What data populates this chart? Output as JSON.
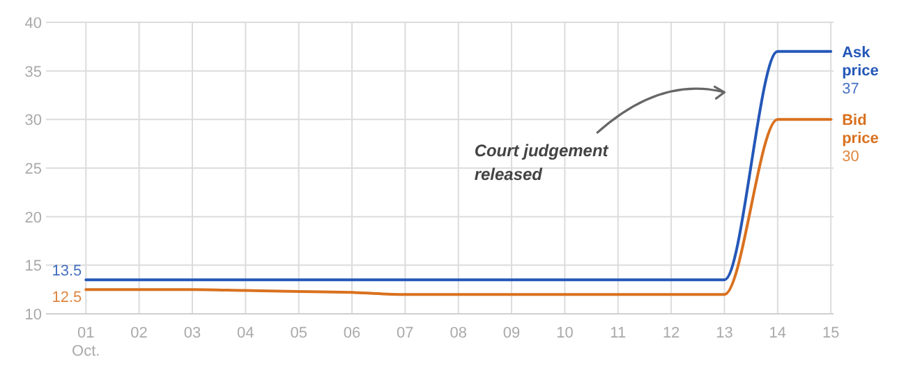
{
  "chart_data": {
    "type": "line",
    "annotations": [
      "Court judgement\nreleased"
    ],
    "x": [
      1,
      2,
      3,
      4,
      5,
      6,
      7,
      8,
      9,
      10,
      11,
      12,
      13,
      14,
      15
    ],
    "series": [
      {
        "name": "Ask\nprice",
        "color": "#2457b8",
        "values": [
          13.5,
          13.5,
          13.5,
          13.5,
          13.5,
          13.5,
          13.5,
          13.5,
          13.5,
          13.5,
          13.5,
          13.5,
          13.5,
          37,
          37
        ],
        "value_labels": [
          "13.5",
          null,
          null,
          null,
          null,
          null,
          null,
          null,
          null,
          null,
          null,
          null,
          null,
          null,
          "37"
        ]
      },
      {
        "name": "Bid\nprice",
        "color": "#d9711f",
        "values": [
          12.5,
          12.5,
          12.5,
          12.4,
          12.3,
          12.2,
          12,
          12,
          12,
          12,
          12,
          12,
          12,
          30,
          30
        ],
        "value_labels": [
          "12.5",
          null,
          null,
          null,
          null,
          null,
          null,
          null,
          null,
          null,
          null,
          null,
          null,
          null,
          "30"
        ]
      }
    ],
    "xlim": [
      0.25,
      15.05
    ],
    "xticks": [
      {
        "value": 1,
        "label": "01\nOct."
      },
      {
        "value": 2,
        "label": "02"
      },
      {
        "value": 3,
        "label": "03"
      },
      {
        "value": 4,
        "label": "04"
      },
      {
        "value": 5,
        "label": "05"
      },
      {
        "value": 6,
        "label": "06"
      },
      {
        "value": 7,
        "label": "07"
      },
      {
        "value": 8,
        "label": "08"
      },
      {
        "value": 9,
        "label": "09"
      },
      {
        "value": 10,
        "label": "10"
      },
      {
        "value": 11,
        "label": "11"
      },
      {
        "value": 12,
        "label": "12"
      },
      {
        "value": 13,
        "label": "13"
      },
      {
        "value": 14,
        "label": "14"
      },
      {
        "value": 15,
        "label": "15"
      }
    ],
    "ylim": [
      10,
      40
    ],
    "yticks": [
      10,
      15,
      20,
      25,
      30,
      35,
      40
    ],
    "grid": true,
    "marker": "none",
    "line_style": "solid",
    "legend": false
  }
}
